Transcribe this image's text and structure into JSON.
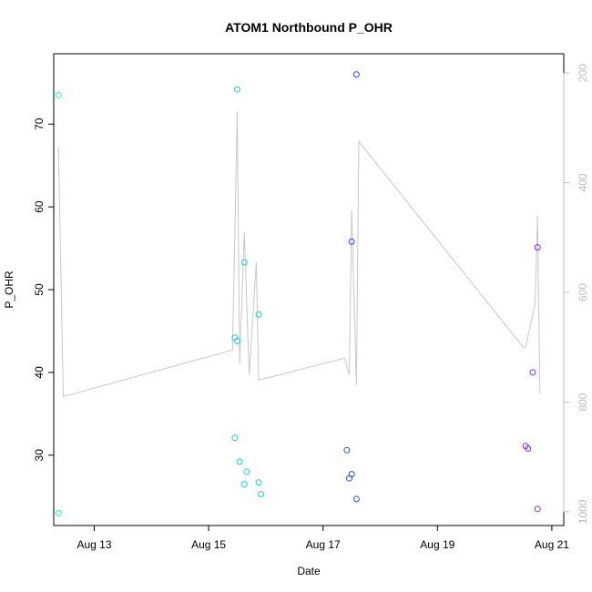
{
  "chart_data": {
    "type": "scatter",
    "title": "ATOM1 Northbound P_OHR",
    "xlabel": "Date",
    "ylabel": "P_OHR",
    "xlim": [
      "2024-08-12T07:00",
      "2024-08-21T05:00"
    ],
    "ylim": [
      21.5,
      78.5
    ],
    "x_ticks": [
      {
        "value": "2024-08-13T00:00",
        "label": "Aug 13"
      },
      {
        "value": "2024-08-15T00:00",
        "label": "Aug 15"
      },
      {
        "value": "2024-08-17T00:00",
        "label": "Aug 17"
      },
      {
        "value": "2024-08-19T00:00",
        "label": "Aug 19"
      },
      {
        "value": "2024-08-21T00:00",
        "label": "Aug 21"
      }
    ],
    "y_ticks": [
      30,
      40,
      50,
      60,
      70
    ],
    "y2_ticks": [
      200,
      400,
      600,
      800,
      1000
    ],
    "y2lim": [
      1025,
      165
    ],
    "y2_color": "#bdbdbd",
    "grid": false,
    "points": [
      {
        "x": "2024-08-12T09:00",
        "y": 73.5,
        "color": "#2af5bf"
      },
      {
        "x": "2024-08-12T09:00",
        "y": 23.0,
        "color": "#2af5bf"
      },
      {
        "x": "2024-08-15T12:00",
        "y": 74.2,
        "color": "#22c8ec"
      },
      {
        "x": "2024-08-15T11:00",
        "y": 44.2,
        "color": "#22c8ec"
      },
      {
        "x": "2024-08-15T12:00",
        "y": 43.8,
        "color": "#22c8ec"
      },
      {
        "x": "2024-08-15T15:00",
        "y": 53.3,
        "color": "#22c8ec"
      },
      {
        "x": "2024-08-15T21:00",
        "y": 47.0,
        "color": "#22c8ec"
      },
      {
        "x": "2024-08-15T11:00",
        "y": 32.1,
        "color": "#22c8ec"
      },
      {
        "x": "2024-08-15T13:00",
        "y": 29.2,
        "color": "#22c8ec"
      },
      {
        "x": "2024-08-15T16:00",
        "y": 28.0,
        "color": "#22c8ec"
      },
      {
        "x": "2024-08-15T15:00",
        "y": 26.5,
        "color": "#22c8ec"
      },
      {
        "x": "2024-08-15T21:00",
        "y": 26.7,
        "color": "#22c8ec"
      },
      {
        "x": "2024-08-15T22:00",
        "y": 25.3,
        "color": "#22c8ec"
      },
      {
        "x": "2024-08-17T14:00",
        "y": 76.0,
        "color": "#2050f0"
      },
      {
        "x": "2024-08-17T12:00",
        "y": 55.8,
        "color": "#2050f0"
      },
      {
        "x": "2024-08-17T10:00",
        "y": 30.6,
        "color": "#2050f0"
      },
      {
        "x": "2024-08-17T12:00",
        "y": 27.7,
        "color": "#2050f0"
      },
      {
        "x": "2024-08-17T11:00",
        "y": 27.2,
        "color": "#2050f0"
      },
      {
        "x": "2024-08-17T14:00",
        "y": 24.7,
        "color": "#2050f0"
      },
      {
        "x": "2024-08-20T18:00",
        "y": 55.1,
        "color": "#8a2be2"
      },
      {
        "x": "2024-08-20T16:00",
        "y": 40.0,
        "color": "#8a2be2"
      },
      {
        "x": "2024-08-20T13:00",
        "y": 31.1,
        "color": "#8a2be2"
      },
      {
        "x": "2024-08-20T14:00",
        "y": 30.8,
        "color": "#8a2be2"
      },
      {
        "x": "2024-08-20T18:00",
        "y": 23.5,
        "color": "#8a2be2"
      }
    ],
    "line": {
      "color": "#c8c8c8",
      "axis": "right",
      "points": [
        {
          "x": "2024-08-12T09:00",
          "y2": 335
        },
        {
          "x": "2024-08-12T11:00",
          "y2": 790
        },
        {
          "x": "2024-08-15T10:00",
          "y2": 705
        },
        {
          "x": "2024-08-15T12:00",
          "y2": 270
        },
        {
          "x": "2024-08-15T13:00",
          "y2": 730
        },
        {
          "x": "2024-08-15T15:00",
          "y2": 490
        },
        {
          "x": "2024-08-15T17:00",
          "y2": 750
        },
        {
          "x": "2024-08-15T20:00",
          "y2": 545
        },
        {
          "x": "2024-08-15T21:00",
          "y2": 760
        },
        {
          "x": "2024-08-17T09:00",
          "y2": 720
        },
        {
          "x": "2024-08-17T11:00",
          "y2": 750
        },
        {
          "x": "2024-08-17T12:00",
          "y2": 450
        },
        {
          "x": "2024-08-17T14:00",
          "y2": 770
        },
        {
          "x": "2024-08-17T15:00",
          "y2": 325
        },
        {
          "x": "2024-08-20T12:00",
          "y2": 700
        },
        {
          "x": "2024-08-20T13:00",
          "y2": 700
        },
        {
          "x": "2024-08-20T17:00",
          "y2": 620
        },
        {
          "x": "2024-08-20T18:00",
          "y2": 460
        },
        {
          "x": "2024-08-20T19:00",
          "y2": 785
        }
      ]
    }
  }
}
